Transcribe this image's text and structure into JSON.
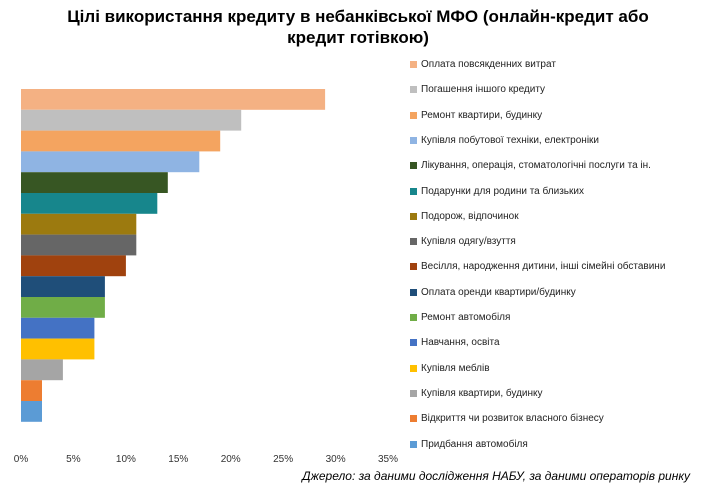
{
  "title_lines": [
    "Цілі використання кредиту в небанківської МФО (онлайн-кредит або",
    "кредит готівкою)"
  ],
  "source": "Джерело: за даними дослідження НАБУ, за даними операторів ринку",
  "chart_data": {
    "type": "bar",
    "orientation": "horizontal",
    "title": "Цілі використання кредиту в небанківської МФО (онлайн-кредит або кредит готівкою)",
    "xlim": [
      0,
      35
    ],
    "x_ticks": [
      "0%",
      "5%",
      "10%",
      "15%",
      "20%",
      "25%",
      "30%",
      "35%"
    ],
    "legend_position": "right",
    "grid": false,
    "categories": [
      "Оплата повсякденних витрат",
      "Погашення іншого кредиту",
      "Ремонт квартири, будинку",
      "Купівля побутової техніки, електроніки",
      "Лікування, операція, стоматологічні послуги та ін.",
      "Подарунки для родини та близьких",
      "Подорож, відпочинок",
      "Купівля одягу/взуття",
      "Весілля, народження дитини, інші сімейні обставини",
      "Оплата оренди квартири/будинку",
      "Ремонт автомобіля",
      "Навчання, освіта",
      "Купівля меблів",
      "Купівля квартири, будинку",
      "Відкриття чи розвиток власного бізнесу",
      "Придбання автомобіля"
    ],
    "values": [
      29,
      21,
      19,
      17,
      14,
      13,
      11,
      11,
      10,
      8,
      8,
      7,
      7,
      4,
      2,
      2
    ],
    "colors": [
      "#F4B183",
      "#BFBFBF",
      "#F4A460",
      "#8FB4E3",
      "#375623",
      "#17868C",
      "#9C7A0F",
      "#666666",
      "#A0420E",
      "#1F4E79",
      "#70AD47",
      "#4472C4",
      "#FFC000",
      "#A5A5A5",
      "#ED7D31",
      "#5B9BD5"
    ]
  }
}
